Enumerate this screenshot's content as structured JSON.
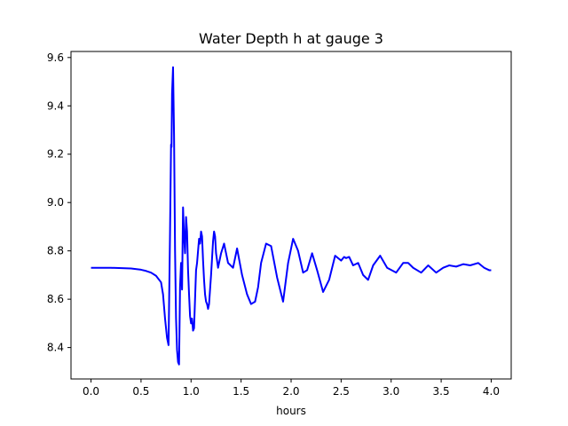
{
  "chart_data": {
    "type": "line",
    "title": "Water Depth h at gauge 3",
    "xlabel": "hours",
    "ylabel": "",
    "xlim": [
      -0.2,
      4.2
    ],
    "ylim": [
      8.27,
      9.625
    ],
    "xticks": [
      0.0,
      0.5,
      1.0,
      1.5,
      2.0,
      2.5,
      3.0,
      3.5,
      4.0
    ],
    "xtick_labels": [
      "0.0",
      "0.5",
      "1.0",
      "1.5",
      "2.0",
      "2.5",
      "3.0",
      "3.5",
      "4.0"
    ],
    "yticks": [
      8.4,
      8.6,
      8.8,
      9.0,
      9.2,
      9.4,
      9.6
    ],
    "ytick_labels": [
      "8.4",
      "8.6",
      "8.8",
      "9.0",
      "9.2",
      "9.4",
      "9.6"
    ],
    "grid": false,
    "legend": "none",
    "series": [
      {
        "color": "#0000ff",
        "x": [
          0.0,
          0.2,
          0.4,
          0.5,
          0.55,
          0.6,
          0.65,
          0.7,
          0.72,
          0.74,
          0.76,
          0.775,
          0.79,
          0.8,
          0.805,
          0.81,
          0.82,
          0.83,
          0.84,
          0.85,
          0.86,
          0.87,
          0.88,
          0.89,
          0.9,
          0.91,
          0.92,
          0.93,
          0.94,
          0.95,
          0.96,
          0.97,
          0.98,
          0.99,
          1.0,
          1.01,
          1.02,
          1.03,
          1.04,
          1.05,
          1.06,
          1.07,
          1.08,
          1.09,
          1.1,
          1.11,
          1.12,
          1.13,
          1.14,
          1.15,
          1.16,
          1.17,
          1.18,
          1.19,
          1.2,
          1.21,
          1.22,
          1.23,
          1.24,
          1.25,
          1.27,
          1.3,
          1.33,
          1.37,
          1.42,
          1.46,
          1.51,
          1.56,
          1.6,
          1.64,
          1.67,
          1.7,
          1.75,
          1.8,
          1.86,
          1.92,
          1.97,
          2.02,
          2.07,
          2.12,
          2.16,
          2.21,
          2.26,
          2.32,
          2.38,
          2.44,
          2.5,
          2.53,
          2.55,
          2.58,
          2.62,
          2.67,
          2.72,
          2.77,
          2.82,
          2.89,
          2.96,
          3.05,
          3.12,
          3.17,
          3.22,
          3.3,
          3.37,
          3.45,
          3.52,
          3.58,
          3.65,
          3.72,
          3.79,
          3.87,
          3.93,
          3.98,
          4.0
        ],
        "y": [
          8.73,
          8.73,
          8.727,
          8.722,
          8.717,
          8.71,
          8.697,
          8.67,
          8.62,
          8.52,
          8.44,
          8.41,
          8.88,
          9.24,
          9.23,
          9.45,
          9.56,
          9.28,
          8.8,
          8.52,
          8.39,
          8.34,
          8.33,
          8.65,
          8.75,
          8.64,
          8.98,
          8.86,
          8.79,
          8.94,
          8.88,
          8.72,
          8.62,
          8.53,
          8.5,
          8.52,
          8.47,
          8.48,
          8.6,
          8.72,
          8.75,
          8.8,
          8.85,
          8.83,
          8.88,
          8.86,
          8.76,
          8.68,
          8.62,
          8.59,
          8.58,
          8.56,
          8.58,
          8.64,
          8.7,
          8.77,
          8.84,
          8.88,
          8.86,
          8.79,
          8.73,
          8.79,
          8.83,
          8.75,
          8.73,
          8.81,
          8.7,
          8.62,
          8.58,
          8.59,
          8.65,
          8.75,
          8.83,
          8.82,
          8.69,
          8.59,
          8.75,
          8.85,
          8.8,
          8.71,
          8.72,
          8.79,
          8.72,
          8.63,
          8.68,
          8.78,
          8.76,
          8.775,
          8.77,
          8.775,
          8.74,
          8.75,
          8.7,
          8.68,
          8.74,
          8.78,
          8.73,
          8.71,
          8.75,
          8.75,
          8.73,
          8.71,
          8.74,
          8.71,
          8.73,
          8.74,
          8.735,
          8.745,
          8.74,
          8.75,
          8.73,
          8.72,
          8.72
        ]
      }
    ]
  }
}
